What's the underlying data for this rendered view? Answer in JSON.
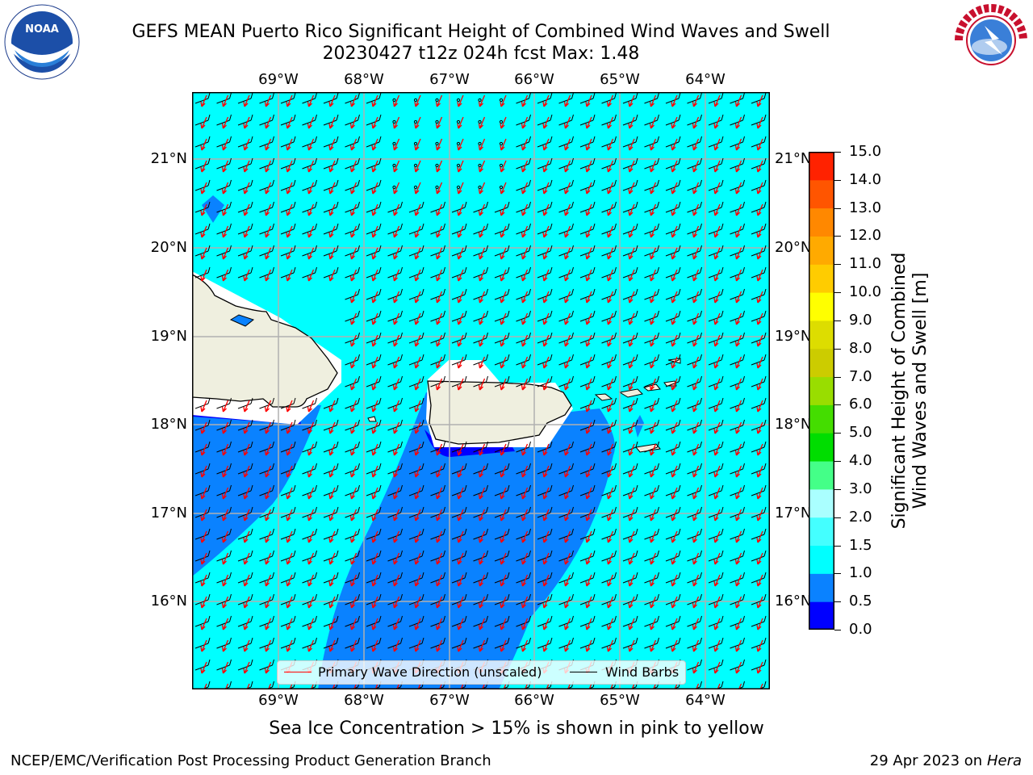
{
  "title_line1": "GEFS MEAN Puerto Rico Significant Height of Combined Wind Waves and Swell",
  "title_line2": "20230427 t12z 024h fcst   Max: 1.48",
  "sea_ice_note": "Sea Ice Concentration > 15% is shown in pink to yellow",
  "footer_left": "NCEP/EMC/Verification Post Processing Product Generation Branch",
  "footer_right_prefix": "29 Apr 2023 on ",
  "footer_right_host": "Hera",
  "lon_labels": [
    "69°W",
    "68°W",
    "67°W",
    "66°W",
    "65°W",
    "64°W"
  ],
  "lat_labels": [
    "21°N",
    "20°N",
    "19°N",
    "18°N",
    "17°N",
    "16°N"
  ],
  "colorbar": {
    "title_line1": "Significant Height of Combined",
    "title_line2": "Wind Waves and Swell [m]",
    "ticks": [
      "0.0",
      "0.5",
      "1.0",
      "1.5",
      "2.0",
      "3.0",
      "4.0",
      "5.0",
      "6.0",
      "7.0",
      "8.0",
      "9.0",
      "10.0",
      "11.0",
      "12.0",
      "13.0",
      "14.0",
      "15.0"
    ],
    "colors": [
      "#0000ff",
      "#0a82ff",
      "#00ffff",
      "#44ffff",
      "#aaffff",
      "#44ff88",
      "#00dd00",
      "#44dd00",
      "#99dd00",
      "#cccc00",
      "#dddd00",
      "#ffff00",
      "#ffcc00",
      "#ffaa00",
      "#ff8800",
      "#ff5500",
      "#ff2200"
    ]
  },
  "legend": {
    "wave_label": "Primary Wave Direction (unscaled)",
    "barb_label": "Wind Barbs",
    "wave_color": "#ff0000",
    "barb_color": "#000000"
  },
  "logos": {
    "noaa_text": "NOAA",
    "nws_text": "NATIONAL WEATHER SERVICE"
  },
  "colors": {
    "land": "#efefdf",
    "sea_main": "#00ffff",
    "sea_mid": "#0a82ff",
    "sea_low": "#0000ff"
  }
}
